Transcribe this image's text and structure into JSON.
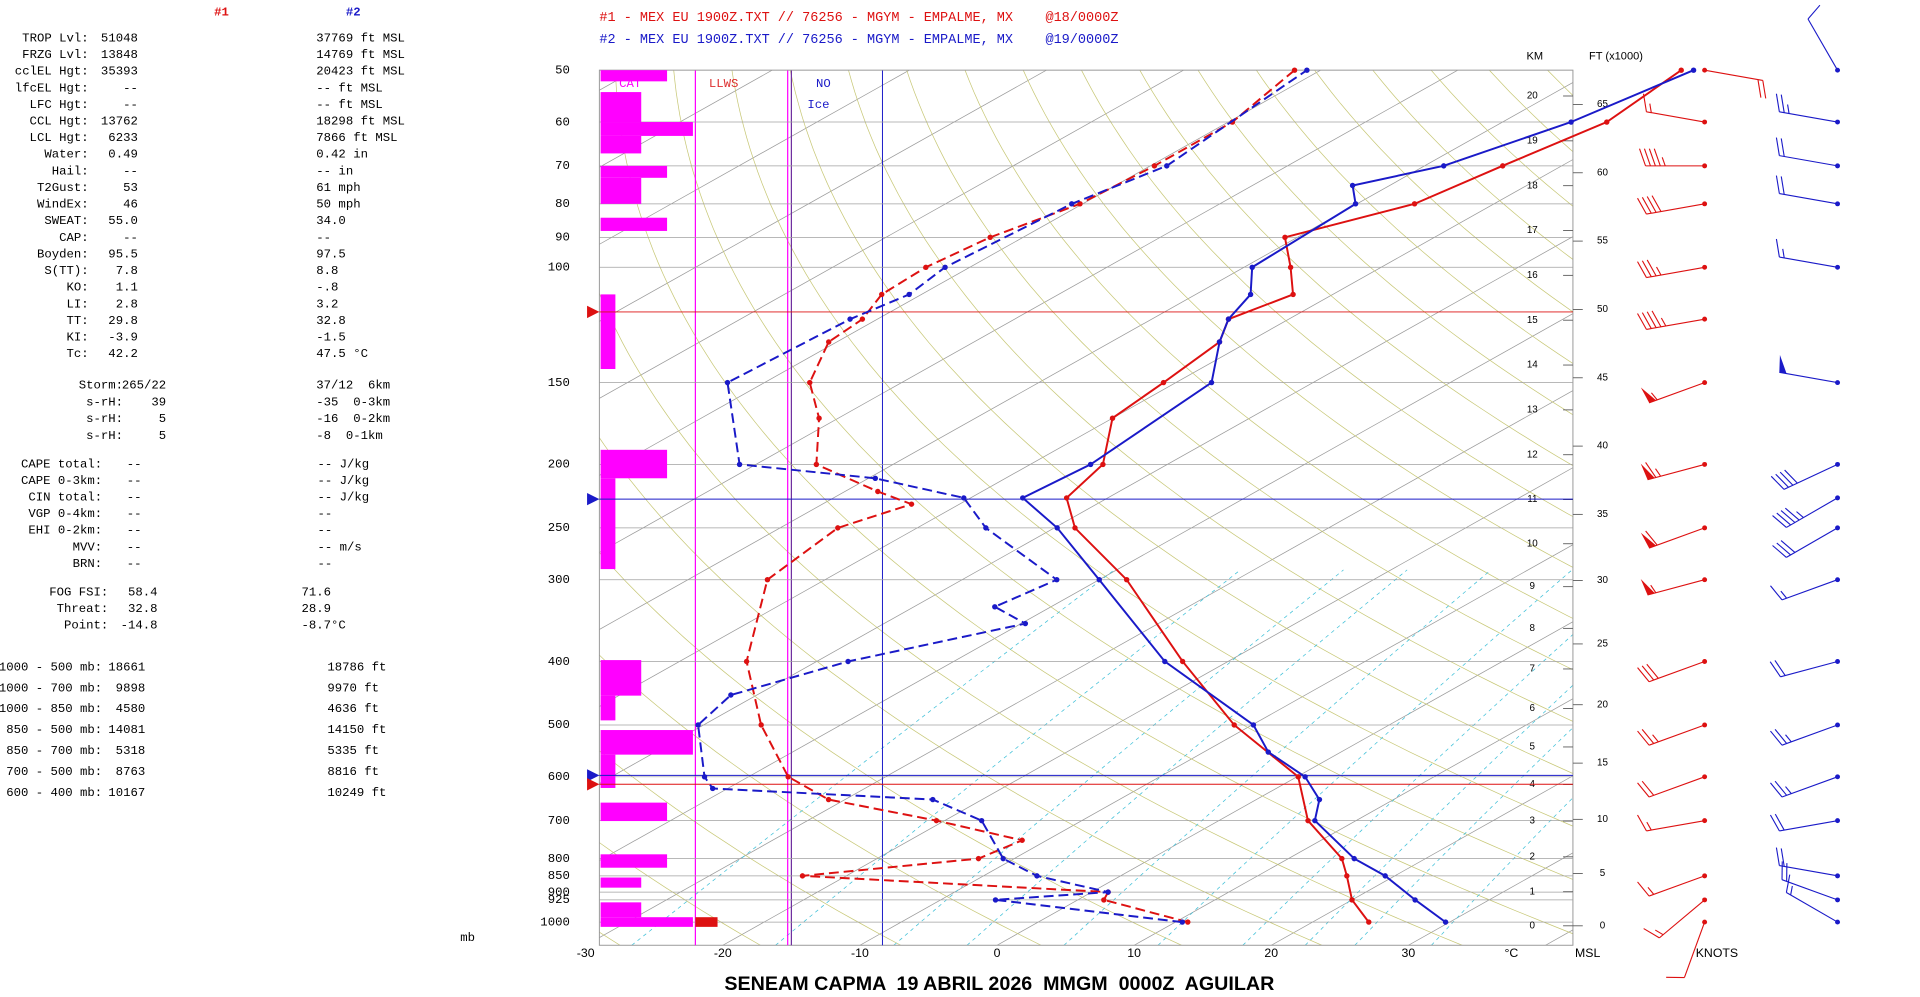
{
  "header": {
    "line1": "#1 - MEX EU 1900Z.TXT // 76256 - MGYM - EMPALME, MX    @18/0000Z",
    "line2": "#2 - MEX EU 1900Z.TXT // 76256 - MGYM - EMPALME, MX    @19/0000Z",
    "col1": "#1",
    "col2": "#2"
  },
  "panel": {
    "sections": [
      {
        "rows": [
          [
            "TROP Lvl:",
            "51048",
            "37769 ft MSL"
          ],
          [
            "FRZG Lvl:",
            "13848",
            "14769 ft MSL"
          ],
          [
            "cclEL Hgt:",
            "35393",
            "20423 ft MSL"
          ],
          [
            "lfcEL Hgt:",
            "--",
            "-- ft MSL"
          ],
          [
            "LFC Hgt:",
            "--",
            "-- ft MSL"
          ],
          [
            "CCL Hgt:",
            "13762",
            "18298 ft MSL"
          ],
          [
            "LCL Hgt:",
            "6233",
            "7866 ft MSL"
          ],
          [
            "Water:",
            "0.49",
            "0.42 in"
          ],
          [
            "Hail:",
            "--",
            "-- in"
          ],
          [
            "T2Gust:",
            "53",
            "61 mph"
          ],
          [
            "WindEx:",
            "46",
            "50 mph"
          ],
          [
            "SWEAT:",
            "55.0",
            "34.0"
          ],
          [
            "CAP:",
            "--",
            "--"
          ],
          [
            "Boyden:",
            "95.5",
            "97.5"
          ],
          [
            "S(TT):",
            "7.8",
            "8.8"
          ],
          [
            "KO:",
            "1.1",
            "-.8"
          ],
          [
            "LI:",
            "2.8",
            "3.2"
          ],
          [
            "TT:",
            "29.8",
            "32.8"
          ],
          [
            "KI:",
            "-3.9",
            "-1.5"
          ],
          [
            "Tc:",
            "42.2",
            "47.5 °C"
          ]
        ]
      },
      {
        "rows": [
          [
            "Storm:",
            "265/22",
            "37/12  6km"
          ],
          [
            "s-rH:",
            "39",
            "-35  0-3km"
          ],
          [
            "s-rH:",
            "5",
            "-16  0-2km"
          ],
          [
            "s-rH:",
            "5",
            "-8  0-1km"
          ]
        ]
      },
      {
        "rows": [
          [
            "CAPE total:",
            "--",
            "-- J/kg"
          ],
          [
            "CAPE 0-3km:",
            "--",
            "-- J/kg"
          ],
          [
            "CIN total:",
            "--",
            "-- J/kg"
          ],
          [
            "VGP 0-4km:",
            "--",
            "--"
          ],
          [
            "EHI 0-2km:",
            "--",
            "--"
          ],
          [
            "MVV:",
            "--",
            "-- m/s"
          ],
          [
            "BRN:",
            "--",
            "--"
          ]
        ]
      },
      {
        "rows": [
          [
            "FOG FSI:",
            "58.4",
            "71.6"
          ],
          [
            "Threat:",
            "32.8",
            "28.9"
          ],
          [
            "Point:",
            "-14.8",
            "-8.7°C"
          ]
        ]
      },
      {
        "rows": [
          [
            "1000 - 500 mb:",
            "18661",
            "18786 ft"
          ],
          [
            "1000 - 700 mb:",
            "9898",
            "9970 ft"
          ],
          [
            "1000 - 850 mb:",
            "4580",
            "4636 ft"
          ],
          [
            "850 - 500 mb:",
            "14081",
            "14150 ft"
          ],
          [
            "850 - 700 mb:",
            "5318",
            "5335 ft"
          ],
          [
            "700 - 500 mb:",
            "8763",
            "8816 ft"
          ],
          [
            "600 - 400 mb:",
            "10167",
            "10249 ft"
          ]
        ]
      }
    ]
  },
  "footer": "SENEAM CAPMA  19 ABRIL 2026  MMGM  0000Z  AGUILAR",
  "chart_data": {
    "type": "skew-t",
    "xlabel": "°C",
    "ylabel": "mb",
    "xlim": [
      -29,
      42
    ],
    "ylim": [
      1085,
      50
    ],
    "log_y": true,
    "xticks": [
      -30,
      -20,
      -10,
      0,
      10,
      20,
      30
    ],
    "yticks": [
      50,
      60,
      70,
      80,
      90,
      100,
      150,
      200,
      250,
      300,
      400,
      500,
      600,
      700,
      800,
      850,
      900,
      925,
      1000
    ],
    "km_label": "KM",
    "km_ticks": [
      0,
      1,
      2,
      3,
      4,
      5,
      6,
      7,
      8,
      9,
      10,
      11,
      12,
      13,
      14,
      15,
      16,
      17,
      18,
      19,
      20
    ],
    "ft_label": "FT (x1000)",
    "ft_ticks": [
      0,
      5,
      10,
      15,
      20,
      25,
      30,
      35,
      40,
      45,
      50,
      55,
      60,
      65
    ],
    "msl_label": "MSL",
    "knots_label": "KNOTS",
    "cat_label": "CAT",
    "llws_label": "LLWS",
    "ice_label1": "NO",
    "ice_label2": "Ice",
    "series": [
      {
        "color": "#dd1111",
        "dashed": false,
        "pressure": [
          1000,
          925,
          850,
          800,
          700,
          600,
          500,
          400,
          300,
          250,
          225,
          200,
          170,
          150,
          130,
          120,
          110,
          100,
          90,
          80,
          70,
          60,
          50
        ],
        "values": [
          24.1,
          20.0,
          16.5,
          13.9,
          6.5,
          0.1,
          -11.3,
          -23.3,
          -38,
          -48.5,
          -53,
          -54.7,
          -60,
          -60.9,
          -62.1,
          -64.4,
          -62.9,
          -66.6,
          -70.9,
          -65.8,
          -64.3,
          -62.4,
          -63.7
        ]
      },
      {
        "color": "#1a1ac8",
        "dashed": false,
        "pressure": [
          1000,
          925,
          850,
          800,
          700,
          650,
          600,
          550,
          500,
          400,
          300,
          250,
          225,
          200,
          150,
          130,
          120,
          110,
          100,
          80,
          75,
          70,
          60,
          50
        ],
        "values": [
          29.7,
          24.6,
          19.3,
          14.8,
          7.0,
          4.6,
          0.6,
          -5.3,
          -9.9,
          -24.6,
          -40,
          -49.8,
          -56.2,
          -55.6,
          -57.4,
          -62.1,
          -64.4,
          -66,
          -69.4,
          -70.1,
          -72.7,
          -68.6,
          -65,
          -62.8
        ]
      },
      {
        "color": "#dd1111",
        "dashed": true,
        "pressure": [
          1000,
          925,
          900,
          850,
          800,
          750,
          700,
          650,
          600,
          500,
          400,
          300,
          250,
          230,
          220,
          200,
          170,
          150,
          130,
          120,
          110,
          100,
          90,
          80,
          70,
          60,
          50
        ],
        "values": [
          10.9,
          1.9,
          1.2,
          -23.2,
          -12.6,
          -11.8,
          -20.6,
          -31.2,
          -37.1,
          -45.8,
          -55.1,
          -64.2,
          -65.8,
          -63.5,
          -67.6,
          -75.6,
          -81.4,
          -86.7,
          -90.6,
          -91.1,
          -92.9,
          -93.2,
          -92.4,
          -90.2,
          -89.7,
          -89.7,
          -91.9
        ]
      },
      {
        "color": "#1a1ac8",
        "dashed": true,
        "pressure": [
          1000,
          925,
          900,
          850,
          800,
          700,
          650,
          625,
          600,
          500,
          450,
          400,
          350,
          330,
          300,
          250,
          225,
          210,
          200,
          150,
          120,
          110,
          100,
          80,
          70,
          50
        ],
        "values": [
          10.5,
          -6,
          1.2,
          -6.1,
          -10.8,
          -17.3,
          -23.6,
          -41.1,
          -43.2,
          -50.4,
          -51.9,
          -47.7,
          -39.7,
          -44.1,
          -43.1,
          -55,
          -60.5,
          -69.5,
          -81.2,
          -92.7,
          -92,
          -90.9,
          -91.8,
          -90.8,
          -88.8,
          -91
        ]
      }
    ],
    "winds": [
      {
        "color": "#dd1111",
        "pressure": [
          1000,
          925,
          850,
          700,
          600,
          500,
          400,
          300,
          250,
          200,
          150,
          120,
          100,
          80,
          70,
          60,
          50
        ],
        "dir": [
          200,
          230,
          250,
          260,
          250,
          250,
          250,
          255,
          250,
          255,
          250,
          260,
          260,
          260,
          270,
          280,
          100
        ],
        "speed": [
          10,
          15,
          15,
          15,
          20,
          25,
          30,
          55,
          60,
          65,
          55,
          45,
          35,
          40,
          45,
          15,
          20
        ]
      },
      {
        "color": "#1a1ac8",
        "pressure": [
          1000,
          925,
          850,
          700,
          600,
          500,
          400,
          300,
          250,
          225,
          200,
          150,
          100,
          80,
          70,
          60,
          50
        ],
        "dir": [
          300,
          290,
          280,
          260,
          250,
          250,
          255,
          250,
          240,
          240,
          245,
          280,
          280,
          280,
          280,
          280,
          330
        ],
        "speed": [
          15,
          20,
          20,
          20,
          25,
          25,
          20,
          15,
          30,
          45,
          40,
          50,
          15,
          20,
          20,
          25,
          10
        ]
      }
    ],
    "cat_bars": {
      "color": "#ff00ff",
      "bars": [
        {
          "top": 50,
          "bottom": 52,
          "level": 3
        },
        {
          "top": 54,
          "bottom": 60,
          "level": 2
        },
        {
          "top": 60,
          "bottom": 63,
          "level": 4
        },
        {
          "top": 63,
          "bottom": 67,
          "level": 2
        },
        {
          "top": 70,
          "bottom": 73,
          "level": 3
        },
        {
          "top": 73,
          "bottom": 80,
          "level": 2
        },
        {
          "top": 84,
          "bottom": 88,
          "level": 3
        },
        {
          "top": 110,
          "bottom": 143,
          "level": 1
        },
        {
          "top": 190,
          "bottom": 210,
          "level": 3
        },
        {
          "top": 210,
          "bottom": 289,
          "level": 1
        },
        {
          "top": 398,
          "bottom": 451,
          "level": 2
        },
        {
          "top": 451,
          "bottom": 492,
          "level": 1
        },
        {
          "top": 509,
          "bottom": 555,
          "level": 4
        },
        {
          "top": 555,
          "bottom": 624,
          "level": 1
        },
        {
          "top": 657,
          "bottom": 701,
          "level": 3
        },
        {
          "top": 788,
          "bottom": 826,
          "level": 3
        },
        {
          "top": 855,
          "bottom": 886,
          "level": 2
        },
        {
          "top": 933,
          "bottom": 983,
          "level": 2
        },
        {
          "top": 983,
          "bottom": 1017,
          "level": 4
        }
      ]
    },
    "llws_bars": {
      "color": "#dd1111",
      "bars": [
        {
          "top": 983,
          "bottom": 1017,
          "level": 1
        }
      ]
    },
    "level_lines": [
      {
        "pressure": 117,
        "color": "#dd1111"
      },
      {
        "pressure": 226,
        "color": "#1a1ac8"
      },
      {
        "pressure": 597,
        "color": "#1a1ac8"
      },
      {
        "pressure": 616,
        "color": "#dd1111"
      }
    ]
  }
}
